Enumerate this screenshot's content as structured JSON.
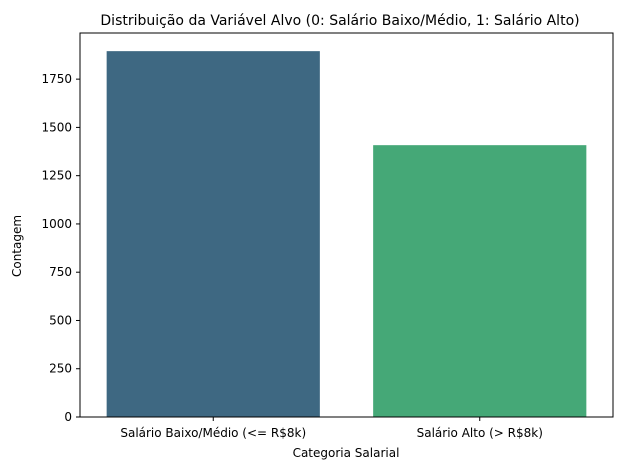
{
  "chart_data": {
    "type": "bar",
    "title": "Distribuição da Variável Alvo (0: Salário Baixo/Médio, 1: Salário Alto)",
    "xlabel": "Categoria Salarial",
    "ylabel": "Contagem",
    "categories": [
      "Salário Baixo/Médio (<= R$8k)",
      "Salário Alto (> R$8k)"
    ],
    "values": [
      1895,
      1408
    ],
    "colors": [
      "#3e6882",
      "#45a877"
    ],
    "ylim": [
      0,
      1989
    ],
    "yticks": [
      0,
      250,
      500,
      750,
      1000,
      1250,
      1500,
      1750
    ],
    "grid": false,
    "legend": "none"
  }
}
